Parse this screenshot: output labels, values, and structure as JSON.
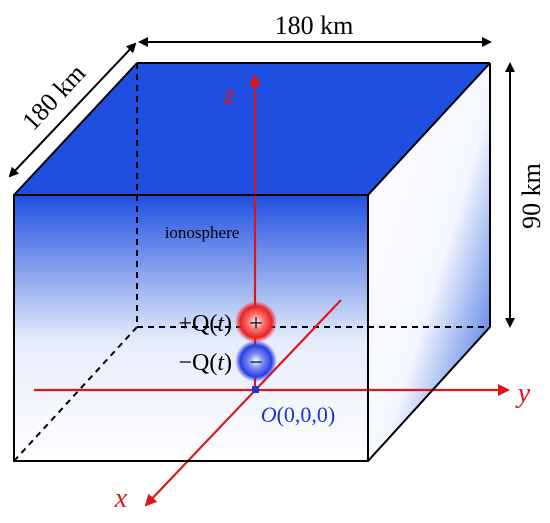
{
  "dimensions": {
    "width_label": "180 km",
    "depth_label": "180 km",
    "height_label": "90 km"
  },
  "region_label": "ionosphere",
  "axes": {
    "x": "x",
    "y": "y",
    "z": "z"
  },
  "charges": {
    "positive_label_prefix": "+Q(",
    "positive_label_var": "t",
    "negative_label_prefix": "−Q(",
    "negative_label_var": "t",
    "label_suffix": ")",
    "positive_symbol": "+",
    "negative_symbol": "−"
  },
  "origin": {
    "prefix": "O",
    "coords": "(0,0,0)"
  },
  "colors": {
    "ionosphere_blue": "#1f4fe0",
    "axis_red": "#e0151b",
    "origin_blue": "#1c35d6",
    "positive_charge": "#ef2020",
    "negative_charge": "#2a3ee0"
  }
}
